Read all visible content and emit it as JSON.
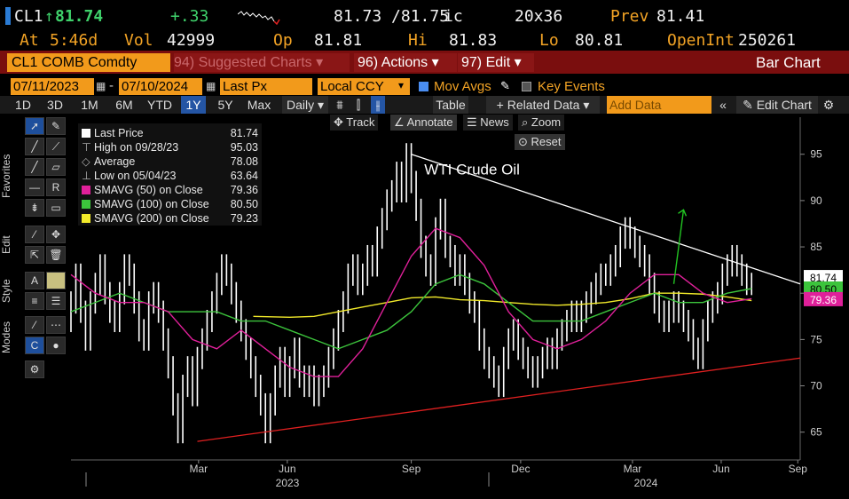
{
  "quote": {
    "ticker": "CL1",
    "arrow": "↑",
    "last": "81.74",
    "change": "+.33",
    "bid_ask": "81.73 /81.75",
    "bid_ask_suffix": "ic",
    "size": "20x36",
    "prev_label": "Prev",
    "prev": "81.41",
    "at_label": "At",
    "time": "5:46d",
    "vol_label": "Vol",
    "vol": "42999",
    "op_label": "Op",
    "op": "81.81",
    "hi_label": "Hi",
    "hi": "81.83",
    "lo_label": "Lo",
    "lo": "80.81",
    "oi_label": "OpenInt",
    "oi": "250261"
  },
  "menubar": {
    "security": "CL1 COMB Comdty",
    "suggested_num": "94)",
    "suggested": "Suggested Charts",
    "actions_num": "96)",
    "actions": "Actions",
    "edit_num": "97)",
    "edit": "Edit",
    "chart_type": "Bar Chart"
  },
  "controls": {
    "start_date": "07/11/2023",
    "end_date": "07/10/2024",
    "field": "Last Px",
    "currency": "Local CCY",
    "mov_avgs": "Mov Avgs",
    "key_events": "Key Events",
    "table": "Table",
    "related": "+ Related Data",
    "add_data_placeholder": "Add Data",
    "edit_chart": "Edit Chart",
    "periodicity": "Daily"
  },
  "ranges": [
    "1D",
    "3D",
    "1M",
    "6M",
    "YTD",
    "1Y",
    "5Y",
    "Max"
  ],
  "active_range": "1Y",
  "chart_tools": {
    "track": "Track",
    "annotate": "Annotate",
    "news": "News",
    "zoom": "Zoom",
    "reset": "Reset"
  },
  "side_labels": [
    "Favorites",
    "Edit",
    "Style",
    "Modes"
  ],
  "legend": [
    {
      "label": "Last Price",
      "value": "81.74",
      "color": "#ffffff"
    },
    {
      "label": "High on 09/28/23",
      "value": "95.03",
      "color": ""
    },
    {
      "label": "Average",
      "value": "78.08",
      "color": ""
    },
    {
      "label": "Low on 05/04/23",
      "value": "63.64",
      "color": ""
    },
    {
      "label": "SMAVG (50)  on Close",
      "value": "79.36",
      "color": "#e0209a"
    },
    {
      "label": "SMAVG (100)  on Close",
      "value": "80.50",
      "color": "#3cc43c"
    },
    {
      "label": "SMAVG (200)  on Close",
      "value": "79.23",
      "color": "#f2ea2a"
    }
  ],
  "chart_data": {
    "type": "bar",
    "annotation": "WTI Crude Oil",
    "ylim": [
      62,
      99
    ],
    "yticks": [
      65,
      70,
      75,
      80,
      85,
      90,
      95
    ],
    "x_month_labels": [
      "Mar",
      "Jun",
      "Sep",
      "Dec",
      "Mar",
      "Jun",
      "Sep"
    ],
    "x_year_labels": [
      "2023",
      "2024"
    ],
    "last_price_tag": "81.74",
    "ma50_tag": "79.36",
    "ma100_tag": "80.50",
    "colors": {
      "price": "#ffffff",
      "ma50": "#e0209a",
      "ma100": "#3cc43c",
      "ma200": "#f2ea2a",
      "resistance": "#ffffff",
      "support": "#e02020",
      "arrow": "#22c422"
    },
    "price": [
      [
        0,
        77
      ],
      [
        4,
        79
      ],
      [
        8,
        82
      ],
      [
        12,
        78
      ],
      [
        16,
        75
      ],
      [
        20,
        79
      ],
      [
        24,
        81
      ],
      [
        28,
        83
      ],
      [
        32,
        80
      ],
      [
        36,
        78
      ],
      [
        40,
        77
      ],
      [
        44,
        80
      ],
      [
        48,
        83
      ],
      [
        52,
        82
      ],
      [
        56,
        79
      ],
      [
        60,
        76
      ],
      [
        64,
        75
      ],
      [
        68,
        79
      ],
      [
        72,
        80
      ],
      [
        76,
        78
      ],
      [
        80,
        75
      ],
      [
        84,
        72
      ],
      [
        88,
        68
      ],
      [
        92,
        65
      ],
      [
        96,
        70
      ],
      [
        100,
        72
      ],
      [
        104,
        69
      ],
      [
        108,
        73
      ],
      [
        112,
        75
      ],
      [
        116,
        77
      ],
      [
        120,
        79
      ],
      [
        124,
        81
      ],
      [
        128,
        83
      ],
      [
        132,
        82
      ],
      [
        136,
        80
      ],
      [
        140,
        78
      ],
      [
        144,
        76
      ],
      [
        148,
        74
      ],
      [
        152,
        72
      ],
      [
        156,
        70
      ],
      [
        160,
        68
      ],
      [
        164,
        65
      ],
      [
        168,
        68
      ],
      [
        172,
        71
      ],
      [
        176,
        73
      ],
      [
        180,
        70
      ],
      [
        184,
        72
      ],
      [
        188,
        74
      ],
      [
        192,
        71
      ],
      [
        196,
        70
      ],
      [
        200,
        71
      ],
      [
        204,
        69
      ],
      [
        208,
        70
      ],
      [
        212,
        71
      ],
      [
        216,
        73
      ],
      [
        220,
        75
      ],
      [
        224,
        77
      ],
      [
        228,
        79
      ],
      [
        232,
        82
      ],
      [
        236,
        83
      ],
      [
        240,
        81
      ],
      [
        244,
        82
      ],
      [
        248,
        84
      ],
      [
        252,
        83
      ],
      [
        256,
        86
      ],
      [
        260,
        88
      ],
      [
        264,
        90
      ],
      [
        268,
        91
      ],
      [
        272,
        93
      ],
      [
        276,
        91
      ],
      [
        280,
        95
      ],
      [
        284,
        92
      ],
      [
        288,
        89
      ],
      [
        292,
        85
      ],
      [
        296,
        83
      ],
      [
        300,
        82
      ],
      [
        304,
        87
      ],
      [
        308,
        89
      ],
      [
        312,
        85
      ],
      [
        316,
        84
      ],
      [
        320,
        82
      ],
      [
        324,
        83
      ],
      [
        328,
        81
      ],
      [
        332,
        79
      ],
      [
        336,
        78
      ],
      [
        340,
        75
      ],
      [
        344,
        73
      ],
      [
        348,
        72
      ],
      [
        352,
        71
      ],
      [
        356,
        70
      ],
      [
        360,
        73
      ],
      [
        364,
        75
      ],
      [
        368,
        76
      ],
      [
        372,
        74
      ],
      [
        376,
        73
      ],
      [
        380,
        72
      ],
      [
        384,
        71
      ],
      [
        388,
        72
      ],
      [
        392,
        73
      ],
      [
        396,
        74
      ],
      [
        400,
        73
      ],
      [
        404,
        75
      ],
      [
        408,
        76
      ],
      [
        412,
        77
      ],
      [
        416,
        78
      ],
      [
        420,
        77
      ],
      [
        424,
        78
      ],
      [
        428,
        79
      ],
      [
        432,
        80
      ],
      [
        436,
        81
      ],
      [
        440,
        82
      ],
      [
        444,
        82
      ],
      [
        448,
        83
      ],
      [
        452,
        84
      ],
      [
        456,
        86
      ],
      [
        460,
        87
      ],
      [
        464,
        86
      ],
      [
        468,
        85
      ],
      [
        472,
        84
      ],
      [
        476,
        83
      ],
      [
        480,
        81
      ],
      [
        484,
        79
      ],
      [
        488,
        78
      ],
      [
        492,
        77
      ],
      [
        496,
        78
      ],
      [
        500,
        79
      ],
      [
        504,
        78
      ],
      [
        508,
        77
      ],
      [
        512,
        76
      ],
      [
        516,
        74
      ],
      [
        520,
        73
      ],
      [
        524,
        76
      ],
      [
        528,
        78
      ],
      [
        532,
        79
      ],
      [
        536,
        80
      ],
      [
        540,
        82
      ],
      [
        544,
        83
      ],
      [
        548,
        84
      ],
      [
        552,
        83
      ],
      [
        556,
        82
      ],
      [
        560,
        81
      ]
    ],
    "ma50": [
      [
        0,
        82
      ],
      [
        20,
        80
      ],
      [
        40,
        79
      ],
      [
        60,
        79
      ],
      [
        80,
        78
      ],
      [
        100,
        75
      ],
      [
        120,
        74
      ],
      [
        140,
        76
      ],
      [
        160,
        74
      ],
      [
        180,
        72
      ],
      [
        200,
        71
      ],
      [
        220,
        71
      ],
      [
        240,
        74
      ],
      [
        260,
        79
      ],
      [
        280,
        84
      ],
      [
        300,
        87
      ],
      [
        320,
        86
      ],
      [
        340,
        83
      ],
      [
        360,
        78
      ],
      [
        380,
        75
      ],
      [
        400,
        74
      ],
      [
        420,
        75
      ],
      [
        440,
        77
      ],
      [
        460,
        80
      ],
      [
        480,
        82
      ],
      [
        500,
        82
      ],
      [
        520,
        80
      ],
      [
        540,
        79
      ],
      [
        560,
        79.4
      ]
    ],
    "ma100": [
      [
        0,
        78
      ],
      [
        20,
        79
      ],
      [
        40,
        80
      ],
      [
        60,
        79
      ],
      [
        80,
        78
      ],
      [
        100,
        78
      ],
      [
        120,
        78
      ],
      [
        140,
        77
      ],
      [
        160,
        77
      ],
      [
        180,
        76
      ],
      [
        200,
        75
      ],
      [
        220,
        74
      ],
      [
        240,
        75
      ],
      [
        260,
        76
      ],
      [
        280,
        78
      ],
      [
        300,
        81
      ],
      [
        320,
        82
      ],
      [
        340,
        81
      ],
      [
        360,
        79
      ],
      [
        380,
        77
      ],
      [
        400,
        77
      ],
      [
        420,
        77
      ],
      [
        440,
        78
      ],
      [
        460,
        79
      ],
      [
        480,
        80
      ],
      [
        500,
        79
      ],
      [
        520,
        79
      ],
      [
        540,
        80
      ],
      [
        560,
        80.5
      ]
    ],
    "ma200": [
      [
        150,
        77.5
      ],
      [
        180,
        77.4
      ],
      [
        200,
        77.5
      ],
      [
        220,
        78
      ],
      [
        240,
        78.5
      ],
      [
        260,
        79
      ],
      [
        280,
        79.5
      ],
      [
        300,
        79.6
      ],
      [
        320,
        79.3
      ],
      [
        340,
        79.2
      ],
      [
        360,
        79
      ],
      [
        380,
        78.8
      ],
      [
        400,
        78.7
      ],
      [
        420,
        78.8
      ],
      [
        440,
        79
      ],
      [
        460,
        79.4
      ],
      [
        480,
        80
      ],
      [
        500,
        80
      ],
      [
        520,
        79.9
      ],
      [
        540,
        79.6
      ],
      [
        560,
        79.2
      ]
    ],
    "resistance": [
      [
        280,
        95
      ],
      [
        600,
        81
      ]
    ],
    "support": [
      [
        104,
        64
      ],
      [
        600,
        73
      ]
    ],
    "arrow": {
      "from": [
        496,
        81
      ],
      "to": [
        504,
        89
      ]
    }
  }
}
